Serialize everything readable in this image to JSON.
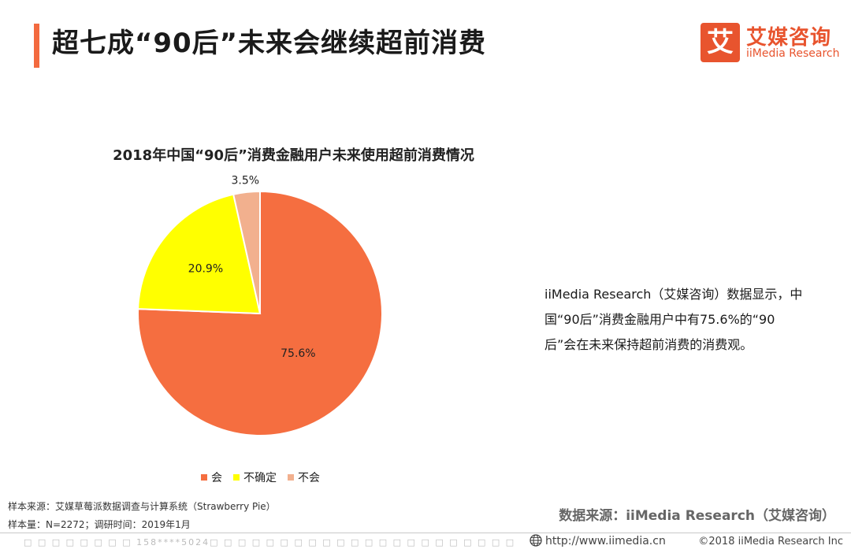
{
  "header": {
    "title": "超七成“90后”未来会继续超前消费",
    "accent_color": "#f36a3f"
  },
  "logo": {
    "glyph": "艾",
    "name_cn": "艾媒咨询",
    "name_en": "iiMedia Research",
    "color": "#e8542e"
  },
  "chart_data": {
    "type": "pie",
    "title": "2018年中国“90后”消费金融用户未来使用超前消费情况",
    "slices": [
      {
        "label": "会",
        "value": 75.6,
        "display": "75.6%",
        "color": "#f56e40"
      },
      {
        "label": "不确定",
        "value": 20.9,
        "display": "20.9%",
        "color": "#ffff00"
      },
      {
        "label": "不会",
        "value": 3.5,
        "display": "3.5%",
        "color": "#f2b08e"
      }
    ],
    "legend_position": "bottom"
  },
  "description": "iiMedia Research（艾媒咨询）数据显示，中国“90后”消费金融用户中有75.6%的“90后”会在未来保持超前消费的消费观。",
  "footer": {
    "sample_source": "样本来源：艾媒草莓派数据调查与计算系统（Strawberry Pie）",
    "sample_size": "样本量：N=2272；调研时间：2019年1月",
    "data_source": "数据来源：iiMedia Research（艾媒咨询）",
    "watermark": "□ □ □ □ □ □ □ □ 158****5024□ □ □ □ □ □ □ □ □ □ □ □ □ □ □ □ □ □ □ □ □ □",
    "website": "http://www.iimedia.cn",
    "copyright": "©2018  iiMedia Research  Inc",
    "globe_icon": "globe-icon"
  }
}
